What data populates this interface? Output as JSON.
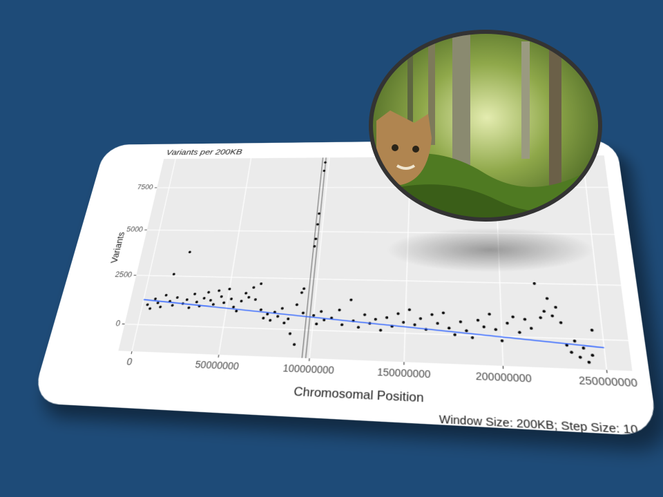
{
  "chart_data": {
    "type": "scatter",
    "title": "Variants per 200KB",
    "x_label": "Chromosomal Position",
    "y_label": "Variants",
    "caption": "Window Size: 200KB; Step Size: 10",
    "color": "#000000",
    "xlim": [
      -8000000,
      262000000
    ],
    "ylim": [
      -1300,
      9300
    ],
    "xticks": [
      0,
      50000000,
      100000000,
      150000000,
      200000000,
      250000000
    ],
    "yticks": [
      0,
      2500,
      5000,
      7500
    ],
    "grid": true,
    "x": [
      3000000,
      5000000,
      7000000,
      9000000,
      11000000,
      13000000,
      15000000,
      16000000,
      18000000,
      20000000,
      22000000,
      24000000,
      26000000,
      28000000,
      30000000,
      32000000,
      34000000,
      36000000,
      38000000,
      40000000,
      42000000,
      44000000,
      46000000,
      48000000,
      50000000,
      52000000,
      54000000,
      56000000,
      58000000,
      60000000,
      62000000,
      64000000,
      66000000,
      68000000,
      70000000,
      72000000,
      74000000,
      76000000,
      78000000,
      80000000,
      82000000,
      84000000,
      86000000,
      88000000,
      90000000,
      91000000,
      92000000,
      93000000,
      94000000,
      96500000,
      96800000,
      97000000,
      97200000,
      97600000,
      97800000,
      100000000,
      102000000,
      104000000,
      106000000,
      110000000,
      114000000,
      116000000,
      120000000,
      122000000,
      125000000,
      128000000,
      131000000,
      134000000,
      137000000,
      140000000,
      143000000,
      146000000,
      149000000,
      152000000,
      155000000,
      158000000,
      161000000,
      164000000,
      167000000,
      170000000,
      173000000,
      176000000,
      179000000,
      182000000,
      185000000,
      188000000,
      191000000,
      194000000,
      197000000,
      200000000,
      203000000,
      206000000,
      209000000,
      212000000,
      215000000,
      218000000,
      220000000,
      222000000,
      224000000,
      226000000,
      228000000,
      230000000,
      232000000,
      234000000,
      236000000,
      238000000,
      240000000,
      242000000,
      244000000,
      245000000
    ],
    "values": [
      1000,
      800,
      1300,
      1100,
      900,
      1500,
      2600,
      1200,
      1000,
      1400,
      3800,
      1100,
      1300,
      900,
      1600,
      1200,
      1000,
      1400,
      1700,
      1300,
      1100,
      1800,
      1500,
      1200,
      1900,
      1400,
      1000,
      800,
      1300,
      1700,
      1500,
      2000,
      1400,
      2200,
      900,
      500,
      700,
      400,
      800,
      600,
      1000,
      300,
      500,
      -200,
      1200,
      -700,
      1800,
      2000,
      800,
      4200,
      4600,
      5400,
      6000,
      8500,
      9000,
      700,
      300,
      900,
      500,
      600,
      1000,
      300,
      1500,
      500,
      200,
      800,
      400,
      600,
      100,
      700,
      300,
      900,
      500,
      1100,
      400,
      700,
      200,
      900,
      500,
      1000,
      300,
      0,
      600,
      200,
      -100,
      700,
      400,
      1000,
      300,
      -200,
      600,
      900,
      200,
      800,
      400,
      2500,
      900,
      1200,
      1800,
      1000,
      1400,
      700,
      -300,
      -600,
      -100,
      -800,
      -400,
      -1000,
      -700,
      400
    ],
    "trend": {
      "color": "#3366ff",
      "x": [
        0,
        250000000
      ],
      "values": [
        1250,
        -350
      ]
    },
    "vlines": [
      96000000,
      98000000
    ]
  }
}
